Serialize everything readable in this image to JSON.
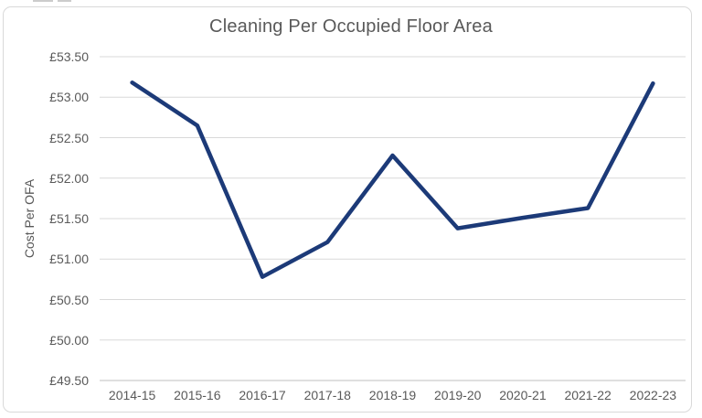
{
  "window": {
    "background": "#ffffff",
    "frame_border_color": "#d9d9d9"
  },
  "chart": {
    "title": "Cleaning Per Occupied Floor Area",
    "y_axis_title": "Cost Per OFA"
  },
  "chart_data": {
    "type": "line",
    "title": "Cleaning Per Occupied Floor Area",
    "xlabel": "",
    "ylabel": "Cost Per OFA",
    "categories": [
      "2014-15",
      "2015-16",
      "2016-17",
      "2017-18",
      "2018-19",
      "2019-20",
      "2020-21",
      "2021-22",
      "2022-23"
    ],
    "series": [
      {
        "name": "Cost Per OFA",
        "values": [
          53.18,
          52.65,
          50.78,
          51.21,
          52.28,
          51.38,
          51.51,
          51.63,
          53.17
        ]
      }
    ],
    "ylim": [
      49.5,
      53.5
    ],
    "ytick_step": 0.5,
    "y_tick_labels": [
      "£49.50",
      "£50.00",
      "£50.50",
      "£51.00",
      "£51.50",
      "£52.00",
      "£52.50",
      "£53.00",
      "£53.50"
    ],
    "grid": true,
    "legend": false,
    "line_color": "#1c3a78",
    "gridline_color": "#d9d9d9",
    "axis_line_color": "#bfbfbf",
    "text_color": "#595959"
  }
}
